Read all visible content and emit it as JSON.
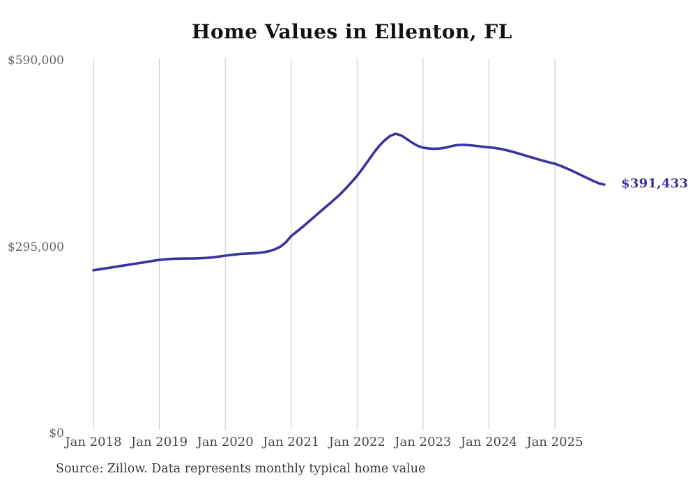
{
  "title": "Home Values in Ellenton, FL",
  "source_note": "Source: Zillow. Data represents monthly typical home value",
  "end_label": "$391,433",
  "colors": {
    "line": "#3b339d",
    "end_label": "#3b339d",
    "grid": "#c9c9c9",
    "background": "#ffffff"
  },
  "chart_data": {
    "type": "line",
    "title": "Home Values in Ellenton, FL",
    "ylabel": "",
    "xlabel": "",
    "ylim": [
      0,
      590000
    ],
    "grid": "vertical-only",
    "legend": "none",
    "x_frequency": "monthly",
    "x_start_label": "Jan 2018",
    "end_value": 391433,
    "y_ticks": [
      {
        "label": "$0",
        "value": 0
      },
      {
        "label": "$295,000",
        "value": 295000
      },
      {
        "label": "$590,000",
        "value": 590000
      }
    ],
    "x_ticks": [
      {
        "label": "Jan 2018",
        "month_index": 0
      },
      {
        "label": "Jan 2019",
        "month_index": 12
      },
      {
        "label": "Jan 2020",
        "month_index": 24
      },
      {
        "label": "Jan 2021",
        "month_index": 36
      },
      {
        "label": "Jan 2022",
        "month_index": 48
      },
      {
        "label": "Jan 2023",
        "month_index": 60
      },
      {
        "label": "Jan 2024",
        "month_index": 72
      },
      {
        "label": "Jan 2025",
        "month_index": 84
      }
    ],
    "series": [
      {
        "name": "Monthly typical home value",
        "values": [
          256000,
          257300,
          258700,
          260000,
          261400,
          262800,
          264100,
          265500,
          266900,
          268200,
          269600,
          271000,
          272300,
          273200,
          273800,
          274200,
          274400,
          274500,
          274600,
          274800,
          275200,
          275800,
          276700,
          277800,
          279000,
          280100,
          281100,
          281900,
          282400,
          282800,
          283400,
          284500,
          286200,
          289000,
          293000,
          300000,
          310000,
          317000,
          324000,
          331500,
          339000,
          346500,
          354000,
          361500,
          369000,
          377000,
          386000,
          395500,
          405500,
          417000,
          429000,
          441500,
          452500,
          461500,
          468500,
          472000,
          469500,
          464000,
          458000,
          453000,
          450000,
          448800,
          448200,
          448600,
          450000,
          452000,
          453800,
          454500,
          454200,
          453400,
          452400,
          451400,
          450600,
          449600,
          448200,
          446400,
          444200,
          441800,
          439200,
          436600,
          434000,
          431400,
          429000,
          426700,
          424600,
          421400,
          417800,
          413900,
          409800,
          405600,
          401400,
          397300,
          393600,
          391433
        ]
      }
    ]
  }
}
